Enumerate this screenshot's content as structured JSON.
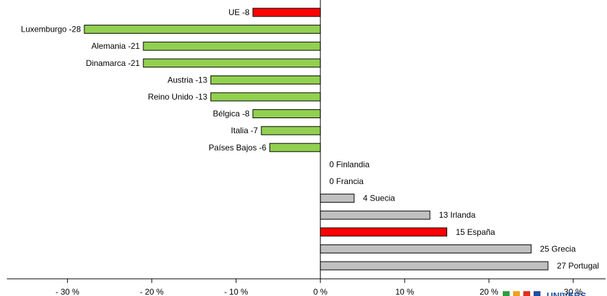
{
  "chart_data": {
    "type": "bar",
    "orientation": "horizontal",
    "categories": [
      "UE",
      "Luxemburgo",
      "Alemania",
      "Dinamarca",
      "Austria",
      "Reino Unido",
      "Bélgica",
      "Italia",
      "Países Bajos",
      "Finlandia",
      "Francia",
      "Suecia",
      "Irlanda",
      "España",
      "Grecia",
      "Portugal"
    ],
    "values": [
      -8,
      -28,
      -21,
      -21,
      -13,
      -13,
      -8,
      -7,
      -6,
      0,
      0,
      4,
      13,
      15,
      25,
      27
    ],
    "bar_value_labels": [
      "UE -8",
      "Luxemburgo -28",
      "Alemania -21",
      "Dinamarca -21",
      "Austria -13",
      "Reino Unido -13",
      "Bélgica -8",
      "Italia -7",
      "Países Bajos -6",
      "0 Finlandia",
      "0 Francia",
      "4 Suecia",
      "13 Irlanda",
      "15 España",
      "25 Grecia",
      "27 Portugal"
    ],
    "bar_colors": [
      "#ff0000",
      "#92d050",
      "#92d050",
      "#92d050",
      "#92d050",
      "#92d050",
      "#92d050",
      "#92d050",
      "#92d050",
      "#c0c0c0",
      "#c0c0c0",
      "#c0c0c0",
      "#c0c0c0",
      "#ff0000",
      "#c0c0c0",
      "#c0c0c0"
    ],
    "xlim": [
      -38,
      34
    ],
    "x_ticks": [
      -30,
      -20,
      -10,
      0,
      10,
      20,
      30
    ],
    "x_tick_labels": [
      "- 30 %",
      "- 20 %",
      "- 10 %",
      "0 %",
      "10 %",
      "20 %",
      "30 %"
    ],
    "grid": false,
    "title": "",
    "xlabel": "",
    "ylabel": ""
  },
  "logo": {
    "text": "UNIVERS",
    "colors": [
      "#2e9e3c",
      "#f0a020",
      "#e03020",
      "#1f4fa0"
    ]
  }
}
